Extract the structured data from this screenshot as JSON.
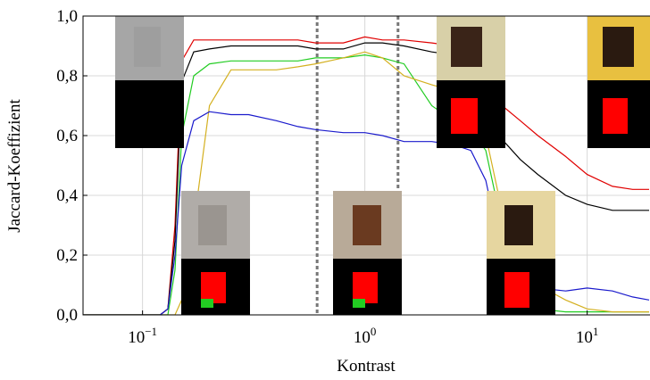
{
  "chart_data": {
    "type": "line",
    "xlabel": "Kontrast",
    "ylabel": "Jaccard-Koeffizient",
    "log_x": true,
    "x": [
      0.054,
      0.1,
      0.12,
      0.13,
      0.14,
      0.15,
      0.17,
      0.2,
      0.25,
      0.3,
      0.4,
      0.5,
      0.6,
      0.8,
      1.0,
      1.2,
      1.5,
      2,
      2.5,
      3,
      3.5,
      4,
      5,
      6,
      8,
      10,
      13,
      16,
      19
    ],
    "series": [
      {
        "name": "rot",
        "color": "#e00000",
        "values": [
          0,
          0,
          0,
          0.02,
          0.3,
          0.85,
          0.92,
          0.92,
          0.92,
          0.92,
          0.92,
          0.92,
          0.91,
          0.91,
          0.93,
          0.92,
          0.92,
          0.91,
          0.9,
          0.88,
          0.8,
          0.71,
          0.65,
          0.6,
          0.53,
          0.47,
          0.43,
          0.42,
          0.42
        ]
      },
      {
        "name": "schwarz",
        "color": "#000000",
        "values": [
          0,
          0,
          0,
          0.02,
          0.25,
          0.78,
          0.88,
          0.89,
          0.9,
          0.9,
          0.9,
          0.9,
          0.89,
          0.89,
          0.91,
          0.91,
          0.9,
          0.88,
          0.87,
          0.82,
          0.7,
          0.6,
          0.52,
          0.47,
          0.4,
          0.37,
          0.35,
          0.35,
          0.35
        ]
      },
      {
        "name": "grün",
        "color": "#22cc22",
        "values": [
          0,
          0,
          0,
          0,
          0.15,
          0.6,
          0.8,
          0.84,
          0.85,
          0.85,
          0.85,
          0.85,
          0.86,
          0.86,
          0.87,
          0.86,
          0.84,
          0.7,
          0.65,
          0.62,
          0.55,
          0.35,
          0.05,
          0.02,
          0.01,
          0.01,
          0.01,
          0.01,
          0.01
        ]
      },
      {
        "name": "gelb",
        "color": "#d4b020",
        "values": [
          0,
          0,
          0,
          0,
          0,
          0.05,
          0.3,
          0.7,
          0.82,
          0.82,
          0.82,
          0.83,
          0.84,
          0.86,
          0.88,
          0.86,
          0.8,
          0.77,
          0.75,
          0.72,
          0.6,
          0.4,
          0.2,
          0.1,
          0.05,
          0.02,
          0.01,
          0.01,
          0.01
        ]
      },
      {
        "name": "blau",
        "color": "#1a1acc",
        "values": [
          0,
          0,
          0,
          0.02,
          0.2,
          0.5,
          0.65,
          0.68,
          0.67,
          0.67,
          0.65,
          0.63,
          0.62,
          0.61,
          0.61,
          0.6,
          0.58,
          0.58,
          0.57,
          0.55,
          0.45,
          0.25,
          0.1,
          0.09,
          0.08,
          0.09,
          0.08,
          0.06,
          0.05
        ]
      }
    ],
    "vlines": [
      0.61,
      1.41
    ],
    "xlim": [
      0.054,
      19.1
    ],
    "ylim": [
      0,
      1
    ],
    "xticks": [
      {
        "value": 0.1,
        "label": "10",
        "exponent": "−1"
      },
      {
        "value": 1,
        "label": "10",
        "exponent": "0"
      },
      {
        "value": 10,
        "label": "10",
        "exponent": "1"
      }
    ],
    "yticks": [
      {
        "value": 0,
        "label": "0,0"
      },
      {
        "value": 0.2,
        "label": "0,2"
      },
      {
        "value": 0.4,
        "label": "0,4"
      },
      {
        "value": 0.6,
        "label": "0,6"
      },
      {
        "value": 0.8,
        "label": "0,8"
      },
      {
        "value": 1,
        "label": "1,0"
      }
    ],
    "grid": true
  }
}
